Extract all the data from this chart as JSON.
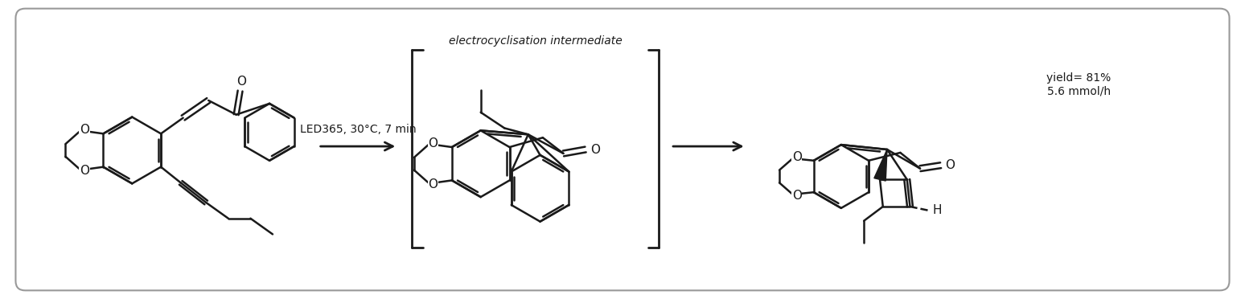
{
  "figure_width": 15.48,
  "figure_height": 3.72,
  "dpi": 100,
  "background_color": "#ffffff",
  "border_color": "#999999",
  "border_linewidth": 1.5,
  "reaction_condition": "LED365, 30°C, 7 min",
  "intermediate_label": "electrocyclisation intermediate",
  "yield_label": "yield= 81%\n5.6 mmol/h",
  "line_color": "#1a1a1a",
  "line_width": 1.8,
  "arrow_color": "#1a1a1a",
  "text_color": "#1a1a1a",
  "font_size_condition": 10,
  "font_size_label": 10,
  "font_size_yield": 10,
  "font_size_atom": 11
}
